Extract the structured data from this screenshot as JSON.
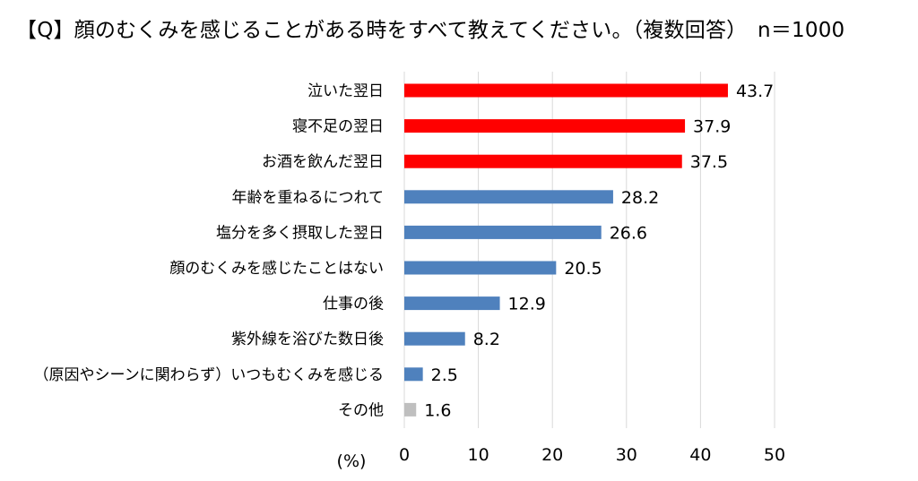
{
  "chart_data": {
    "type": "bar",
    "orientation": "horizontal",
    "title": "【Q】顔のむくみを感じることがある時をすべて教えてください。（複数回答）　n＝1000",
    "xlabel": "(%)",
    "ylabel": "",
    "xlim": [
      0,
      50
    ],
    "xticks": [
      0,
      10,
      20,
      30,
      40,
      50
    ],
    "grid": "vertical",
    "categories": [
      "泣いた翌日",
      "寝不足の翌日",
      "お酒を飲んだ翌日",
      "年齢を重ねるにつれて",
      "塩分を多く摂取した翌日",
      "顔のむくみを感じたことはない",
      "仕事の後",
      "紫外線を浴びた数日後",
      "（原因やシーンに関わらず）いつもむくみを感じる",
      "その他"
    ],
    "values": [
      43.7,
      37.9,
      37.5,
      28.2,
      26.6,
      20.5,
      12.9,
      8.2,
      2.5,
      1.6
    ],
    "value_labels": [
      "43.7",
      "37.9",
      "37.5",
      "28.2",
      "26.6",
      "20.5",
      "12.9",
      "8.2",
      "2.5",
      "1.6"
    ],
    "bar_colors": [
      "#ff0000",
      "#ff0000",
      "#ff0000",
      "#4f81bd",
      "#4f81bd",
      "#4f81bd",
      "#4f81bd",
      "#4f81bd",
      "#4f81bd",
      "#bfbfbf"
    ],
    "grid_color": "#d9d9d9"
  }
}
